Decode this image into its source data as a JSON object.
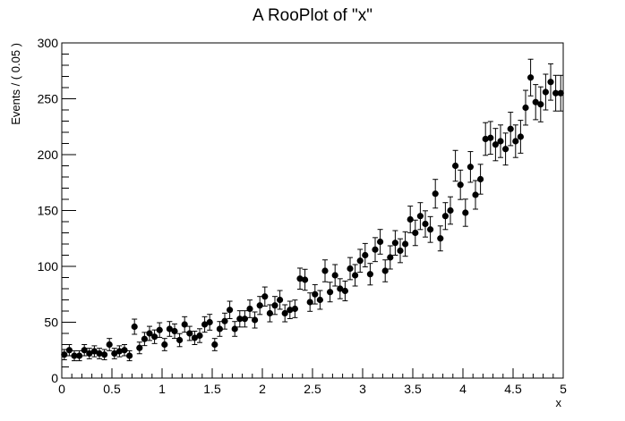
{
  "chart_data": {
    "type": "scatter",
    "title": "A RooPlot of \"x\"",
    "xlabel": "x",
    "ylabel": "Events / ( 0.05 )",
    "xlim": [
      0,
      5
    ],
    "ylim": [
      0,
      300
    ],
    "x_major_ticks": [
      0,
      0.5,
      1,
      1.5,
      2,
      2.5,
      3,
      3.5,
      4,
      4.5,
      5
    ],
    "x_tick_labels": [
      "0",
      "0.5",
      "1",
      "1.5",
      "2",
      "2.5",
      "3",
      "3.5",
      "4",
      "4.5",
      "5"
    ],
    "y_major_ticks": [
      0,
      50,
      100,
      150,
      200,
      250,
      300
    ],
    "y_tick_labels": [
      "0",
      "50",
      "100",
      "150",
      "200",
      "250",
      "300"
    ],
    "grid": false,
    "legend": "none",
    "marker_color": "#000000",
    "error_bars": "sqrt(y)",
    "series": [
      {
        "x": [
          0.025,
          0.075,
          0.125,
          0.175,
          0.225,
          0.275,
          0.325,
          0.375,
          0.425,
          0.475,
          0.525,
          0.575,
          0.625,
          0.675,
          0.725,
          0.775,
          0.825,
          0.875,
          0.925,
          0.975,
          1.025,
          1.075,
          1.125,
          1.175,
          1.225,
          1.275,
          1.325,
          1.375,
          1.425,
          1.475,
          1.525,
          1.575,
          1.625,
          1.675,
          1.725,
          1.775,
          1.825,
          1.875,
          1.925,
          1.975,
          2.025,
          2.075,
          2.125,
          2.175,
          2.225,
          2.275,
          2.325,
          2.375,
          2.425,
          2.475,
          2.525,
          2.575,
          2.625,
          2.675,
          2.725,
          2.775,
          2.825,
          2.875,
          2.925,
          2.975,
          3.025,
          3.075,
          3.125,
          3.175,
          3.225,
          3.275,
          3.325,
          3.375,
          3.425,
          3.475,
          3.525,
          3.575,
          3.625,
          3.675,
          3.725,
          3.775,
          3.825,
          3.875,
          3.925,
          3.975,
          4.025,
          4.075,
          4.125,
          4.175,
          4.225,
          4.275,
          4.325,
          4.375,
          4.425,
          4.475,
          4.525,
          4.575,
          4.625,
          4.675,
          4.725,
          4.775,
          4.825,
          4.875,
          4.925,
          4.975
        ],
        "y": [
          21,
          25,
          20,
          20,
          25,
          22,
          24,
          22,
          21,
          30,
          22,
          24,
          25,
          20,
          46,
          27,
          35,
          40,
          37,
          43,
          30,
          44,
          42,
          34,
          48,
          40,
          36,
          38,
          48,
          50,
          30,
          44,
          51,
          61,
          44,
          53,
          53,
          62,
          52,
          65,
          73,
          58,
          65,
          70,
          58,
          61,
          62,
          89,
          88,
          68,
          75,
          70,
          96,
          77,
          92,
          80,
          78,
          98,
          92,
          105,
          110,
          93,
          115,
          122,
          96,
          108,
          121,
          114,
          120,
          142,
          130,
          145,
          138,
          133,
          165,
          125,
          145,
          150,
          190,
          173,
          148,
          189,
          164,
          178,
          214,
          215,
          209,
          212,
          205,
          223,
          212,
          216,
          242,
          269,
          247,
          245,
          256,
          265,
          255,
          255
        ]
      }
    ]
  }
}
